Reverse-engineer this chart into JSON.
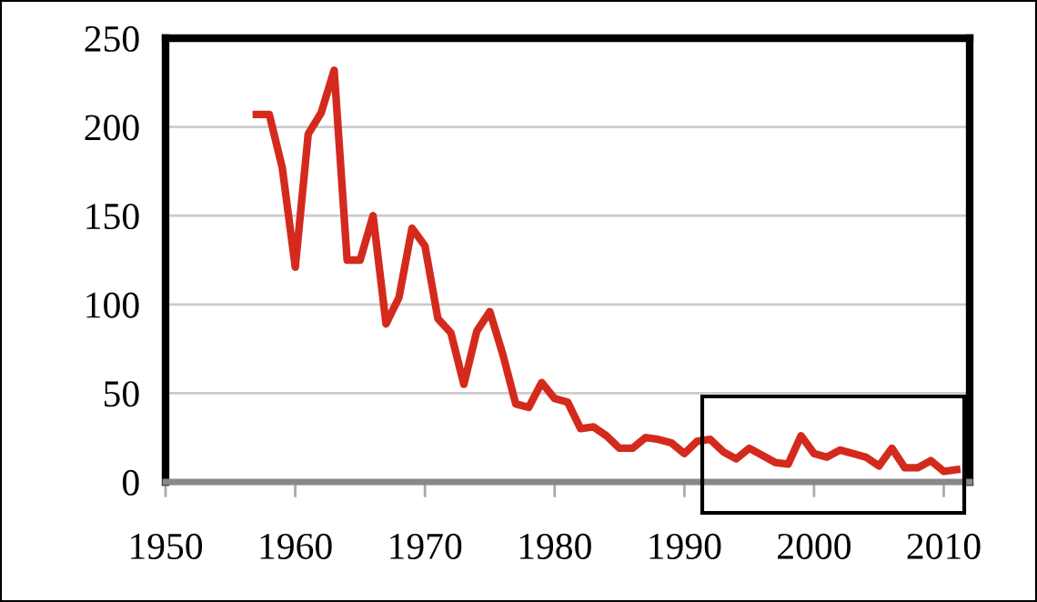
{
  "chart_data": {
    "type": "line",
    "x": [
      1957,
      1958,
      1959,
      1960,
      1961,
      1962,
      1963,
      1964,
      1965,
      1966,
      1967,
      1968,
      1969,
      1970,
      1971,
      1972,
      1973,
      1974,
      1975,
      1976,
      1977,
      1978,
      1979,
      1980,
      1981,
      1982,
      1983,
      1984,
      1985,
      1986,
      1987,
      1988,
      1989,
      1990,
      1991,
      1992,
      1993,
      1994,
      1995,
      1996,
      1997,
      1998,
      1999,
      2000,
      2001,
      2002,
      2003,
      2004,
      2005,
      2006,
      2007,
      2008,
      2009,
      2010,
      2011
    ],
    "series": [
      {
        "color": "#d42a1e",
        "values": [
          207,
          207,
          177,
          121,
          196,
          208,
          232,
          125,
          125,
          150,
          89,
          104,
          143,
          133,
          92,
          84,
          55,
          85,
          96,
          72,
          44,
          42,
          56,
          47,
          45,
          30,
          31,
          26,
          19,
          19,
          25,
          24,
          22,
          16,
          23,
          24,
          17,
          13,
          19,
          15,
          11,
          10,
          26,
          16,
          14,
          18,
          16,
          14,
          9,
          19,
          8,
          8,
          12,
          6,
          7
        ]
      }
    ],
    "xlim": [
      1950,
      2012
    ],
    "ylim": [
      0,
      250
    ],
    "xticks": [
      1950,
      1960,
      1970,
      1980,
      1990,
      2000,
      2010
    ],
    "yticks": [
      0,
      50,
      100,
      150,
      200,
      250
    ],
    "grid": "y",
    "legend": false,
    "marker": "none",
    "line_style": "solid"
  }
}
